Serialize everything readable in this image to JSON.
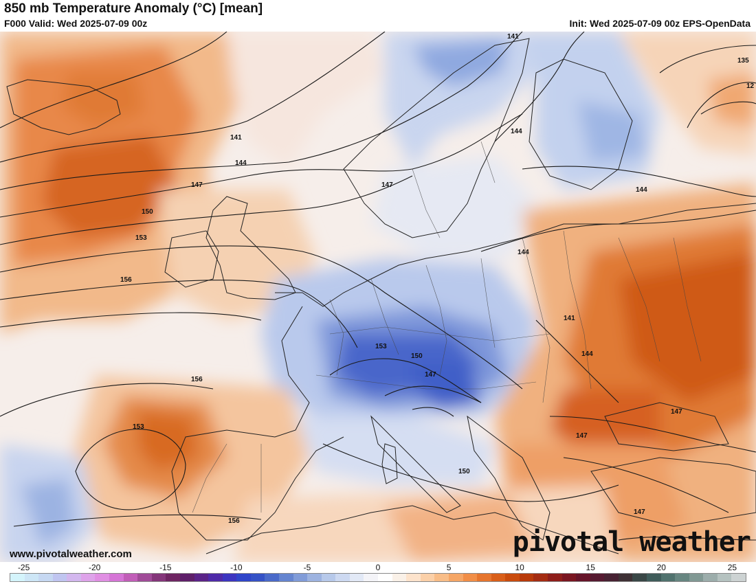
{
  "header": {
    "title": "850 mb Temperature Anomaly (°C) [mean]",
    "valid": "F000 Valid: Wed 2025-07-09 00z",
    "init": "Init: Wed 2025-07-09 00z EPS-OpenData"
  },
  "footer": {
    "website": "www.pivotalweather.com",
    "brand": "pivotal weather"
  },
  "map": {
    "variable": "850 mb temperature anomaly",
    "units": "°C",
    "region": "Europe and North Atlantic",
    "contour_labels": [
      {
        "id": "c141-a",
        "value": "141"
      },
      {
        "id": "c141-b",
        "value": "141"
      },
      {
        "id": "c141-c",
        "value": "141"
      },
      {
        "id": "c144-a",
        "value": "144"
      },
      {
        "id": "c144-b",
        "value": "144"
      },
      {
        "id": "c144-c",
        "value": "144"
      },
      {
        "id": "c144-d",
        "value": "144"
      },
      {
        "id": "c144-e",
        "value": "144"
      },
      {
        "id": "c147-a",
        "value": "147"
      },
      {
        "id": "c147-b",
        "value": "147"
      },
      {
        "id": "c147-c",
        "value": "147"
      },
      {
        "id": "c147-d",
        "value": "147"
      },
      {
        "id": "c147-e",
        "value": "147"
      },
      {
        "id": "c147-f",
        "value": "147"
      },
      {
        "id": "c150-a",
        "value": "150"
      },
      {
        "id": "c150-b",
        "value": "150"
      },
      {
        "id": "c150-c",
        "value": "150"
      },
      {
        "id": "c153-a",
        "value": "153"
      },
      {
        "id": "c153-b",
        "value": "153"
      },
      {
        "id": "c153-c",
        "value": "153"
      },
      {
        "id": "c156-a",
        "value": "156"
      },
      {
        "id": "c156-b",
        "value": "156"
      },
      {
        "id": "c156-c",
        "value": "156"
      },
      {
        "id": "c135",
        "value": "135"
      },
      {
        "id": "c12",
        "value": "12"
      }
    ],
    "colors": {
      "ocean_neutral": "#f4ecea",
      "warm_light": "#f7cfaa",
      "warm_mid": "#f0a872",
      "warm_strong": "#e07530",
      "warm_deep": "#c85010",
      "cool_light": "#d3def2",
      "cool_mid": "#a9bfe6",
      "cool_strong": "#6c8fd6",
      "cool_deep": "#3a5ec4",
      "contour": "#1a1a1a",
      "border": "#333333"
    }
  },
  "colorbar": {
    "tick_labels": [
      "-25",
      "-20",
      "-15",
      "-10",
      "-5",
      "0",
      "5",
      "10",
      "15",
      "20",
      "25"
    ],
    "ticks": [
      -25,
      -20,
      -15,
      -10,
      -5,
      0,
      5,
      10,
      15,
      20,
      25
    ],
    "range": [
      -26,
      26
    ],
    "swatches": [
      "#d4f4fb",
      "#cde6f6",
      "#c6d8f2",
      "#c0c5f0",
      "#d3b7ee",
      "#dea3ea",
      "#e08fe3",
      "#d575d6",
      "#c15eb8",
      "#a04b98",
      "#84367a",
      "#6e2562",
      "#5e1f69",
      "#5a2388",
      "#4e2aa8",
      "#3c35c0",
      "#2f45c9",
      "#3552c6",
      "#4a6ac9",
      "#6585d0",
      "#819cd8",
      "#9db3e0",
      "#b7c9ea",
      "#cdd9f1",
      "#e2e9f6",
      "#f4f4f8",
      "#ffffff",
      "#faf1e8",
      "#fde3cc",
      "#fbd0a8",
      "#f8bd88",
      "#f5a666",
      "#f18e47",
      "#e6752e",
      "#d95f1a",
      "#c94b0d",
      "#b83a0a",
      "#a42c12",
      "#8e1e1a",
      "#7a1621",
      "#661429",
      "#561a31",
      "#472232",
      "#3e3135",
      "#394746",
      "#3f5c5a",
      "#50726e",
      "#678681",
      "#819994",
      "#9cadab",
      "#b5c2c0",
      "#cdd3d3"
    ]
  }
}
